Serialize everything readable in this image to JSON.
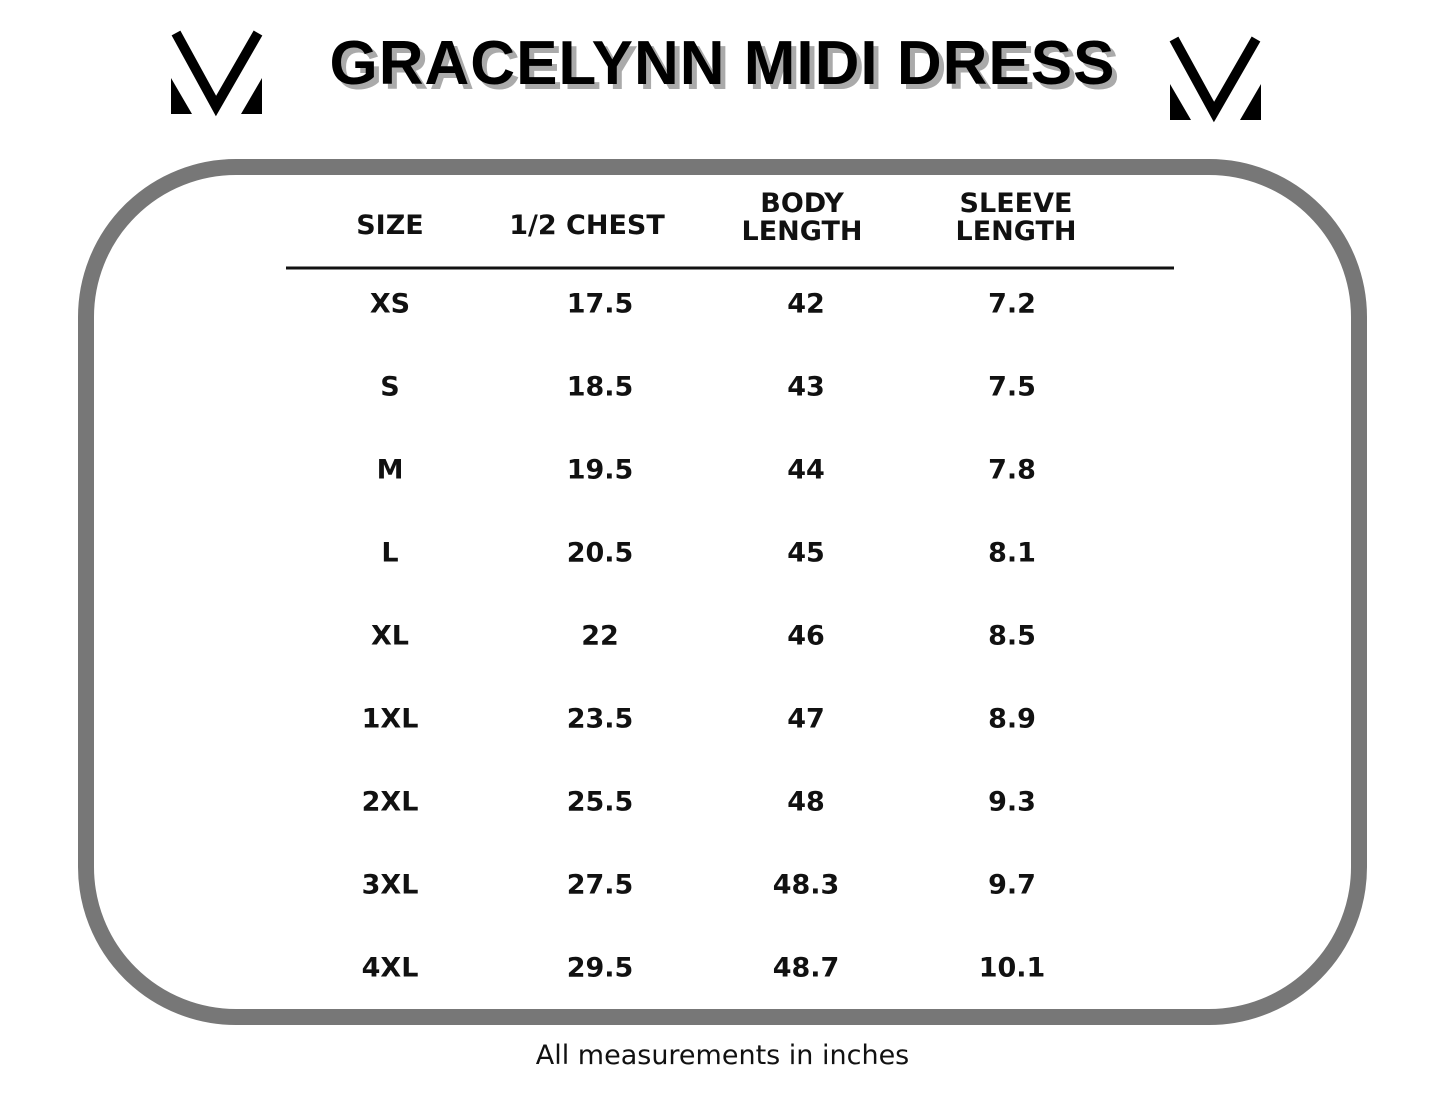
{
  "header": {
    "title": "GRACELYNN MIDI DRESS"
  },
  "table": {
    "columns": [
      "SIZE",
      "1/2 CHEST",
      "BODY LENGTH",
      "SLEEVE LENGTH"
    ],
    "rows": [
      [
        "XS",
        "17.5",
        "42",
        "7.2"
      ],
      [
        "S",
        "18.5",
        "43",
        "7.5"
      ],
      [
        "M",
        "19.5",
        "44",
        "7.8"
      ],
      [
        "L",
        "20.5",
        "45",
        "8.1"
      ],
      [
        "XL",
        "22",
        "46",
        "8.5"
      ],
      [
        "1XL",
        "23.5",
        "47",
        "8.9"
      ],
      [
        "2XL",
        "25.5",
        "48",
        "9.3"
      ],
      [
        "3XL",
        "27.5",
        "48.3",
        "9.7"
      ],
      [
        "4XL",
        "29.5",
        "48.7",
        "10.1"
      ]
    ]
  },
  "footer": {
    "note": "All measurements in inches"
  }
}
